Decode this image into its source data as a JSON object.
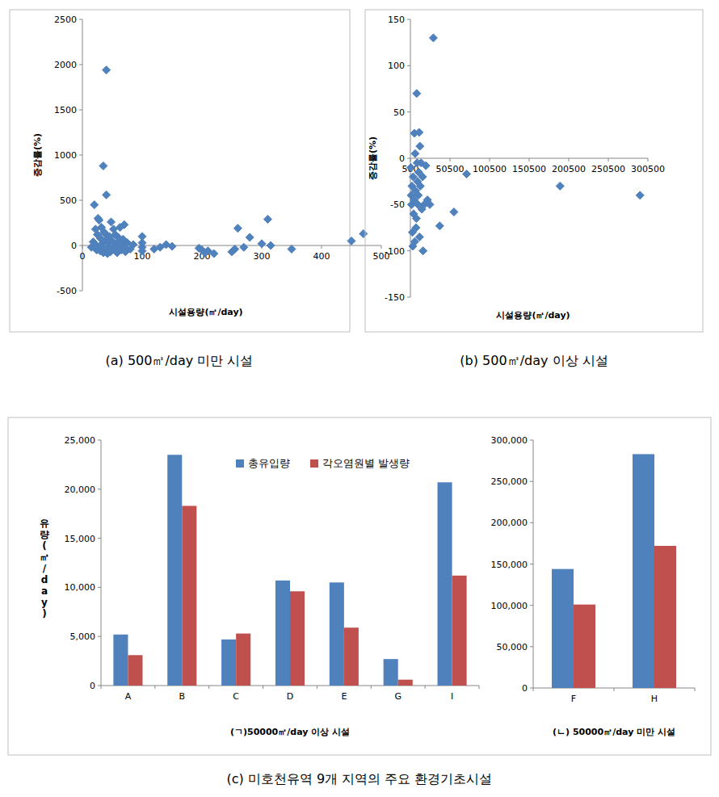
{
  "chart_data": [
    {
      "type": "scatter",
      "title": "(a) 500㎥/day 미만 시설",
      "x_label": "시설용량(㎥/day)",
      "y_label": "증감률(%)",
      "x": [
        15,
        18,
        20,
        22,
        24,
        25,
        26,
        28,
        28,
        30,
        30,
        32,
        33,
        35,
        35,
        36,
        38,
        38,
        40,
        40,
        40,
        42,
        43,
        45,
        45,
        47,
        48,
        50,
        50,
        52,
        53,
        55,
        55,
        57,
        58,
        60,
        60,
        62,
        63,
        65,
        66,
        68,
        70,
        70,
        72,
        75,
        80,
        85,
        100,
        100,
        100,
        100,
        120,
        130,
        140,
        150,
        195,
        200,
        205,
        210,
        220,
        250,
        255,
        260,
        270,
        280,
        300,
        310,
        315,
        350,
        450,
        470,
        22
      ],
      "values": [
        -20,
        40,
        450,
        10,
        -50,
        120,
        300,
        -30,
        280,
        80,
        -60,
        200,
        20,
        880,
        -80,
        150,
        -40,
        130,
        1940,
        560,
        60,
        -90,
        30,
        100,
        -20,
        -70,
        260,
        50,
        -40,
        180,
        -10,
        120,
        -60,
        20,
        -80,
        90,
        -30,
        40,
        200,
        -50,
        10,
        70,
        230,
        -20,
        -70,
        30,
        -40,
        10,
        100,
        -20,
        -60,
        30,
        -40,
        -20,
        10,
        -10,
        -30,
        -50,
        -80,
        -60,
        -90,
        -70,
        -40,
        190,
        -20,
        90,
        20,
        290,
        0,
        -40,
        50,
        130,
        180
      ],
      "color": "#4f81bd",
      "marker": "diamond",
      "xlim": [
        0,
        500
      ],
      "ylim": [
        -500,
        2500
      ],
      "xticks": [
        0,
        100,
        200,
        300,
        400,
        500
      ],
      "yticks": [
        -500,
        0,
        500,
        1000,
        1500,
        2000,
        2500
      ],
      "grid": false
    },
    {
      "type": "scatter",
      "title": "(b) 500㎥/day 이상 시설",
      "x_label": "시설용량(㎥/day)",
      "y_label": "증감률(%)",
      "x": [
        1000,
        1500,
        2000,
        2500,
        3000,
        3500,
        4000,
        4500,
        5000,
        5500,
        6000,
        6500,
        7000,
        7500,
        8000,
        8500,
        9000,
        9500,
        10000,
        10500,
        11000,
        11500,
        12000,
        12500,
        13000,
        14000,
        15000,
        16000,
        16500,
        18000,
        20000,
        22000,
        25000,
        29500,
        37500,
        55500,
        71500,
        189500,
        290500
      ],
      "values": [
        -10,
        -40,
        -50,
        -30,
        -80,
        -95,
        -20,
        -60,
        -45,
        27,
        -90,
        5,
        -35,
        -75,
        -65,
        70,
        -5,
        -25,
        -50,
        -40,
        -15,
        28,
        -85,
        13,
        -30,
        -5,
        -55,
        -20,
        -100,
        -50,
        -8,
        -45,
        -50,
        130,
        -73,
        -58,
        -17,
        -30,
        -40
      ],
      "color": "#4f81bd",
      "marker": "diamond",
      "xlim": [
        500,
        300500
      ],
      "ylim": [
        -150,
        150
      ],
      "xticks": [
        500,
        50500,
        100500,
        150500,
        200500,
        250500,
        300500
      ],
      "yticks": [
        -150,
        -100,
        -50,
        0,
        50,
        100,
        150
      ],
      "grid": false
    },
    {
      "type": "bar",
      "title": "(c) 미호천유역 9개 지역의 주요 환경기초시설",
      "x_label": "(ㄱ)50000㎥/day 이상 시설",
      "y_label": "유량(㎥/day)",
      "categories": [
        "A",
        "B",
        "C",
        "D",
        "E",
        "G",
        "I"
      ],
      "series": [
        {
          "name": "총유입량",
          "color": "#4f81bd",
          "values": [
            5200,
            23500,
            4700,
            10700,
            10500,
            2700,
            20700
          ]
        },
        {
          "name": "각오염원별 발생량",
          "color": "#c0504d",
          "values": [
            3100,
            18300,
            5300,
            9600,
            5900,
            600,
            11200
          ]
        }
      ],
      "ylim": [
        0,
        25000
      ],
      "yticks": [
        0,
        {
          "value": 5000,
          "label": "5,000"
        },
        {
          "value": 10000,
          "label": "10,000"
        },
        {
          "value": 15000,
          "label": "15,000"
        },
        {
          "value": 20000,
          "label": "20,000"
        },
        {
          "value": 25000,
          "label": "25,000"
        }
      ],
      "legend": "top",
      "grid": false
    },
    {
      "type": "bar",
      "x_label": "(ㄴ) 50000㎥/day 미만 시설",
      "categories": [
        "F",
        "H"
      ],
      "series": [
        {
          "color": "#4f81bd",
          "values": [
            144000,
            283000
          ]
        },
        {
          "color": "#c0504d",
          "values": [
            101000,
            172000
          ]
        }
      ],
      "ylim": [
        0,
        300000
      ],
      "yticks": [
        0,
        {
          "value": 50000,
          "label": "50,000"
        },
        {
          "value": 100000,
          "label": "100,000"
        },
        {
          "value": 150000,
          "label": "150,000"
        },
        {
          "value": 200000,
          "label": "200,000"
        },
        {
          "value": 250000,
          "label": "250,000"
        },
        {
          "value": 300000,
          "label": "300,000"
        }
      ],
      "grid": false
    }
  ]
}
